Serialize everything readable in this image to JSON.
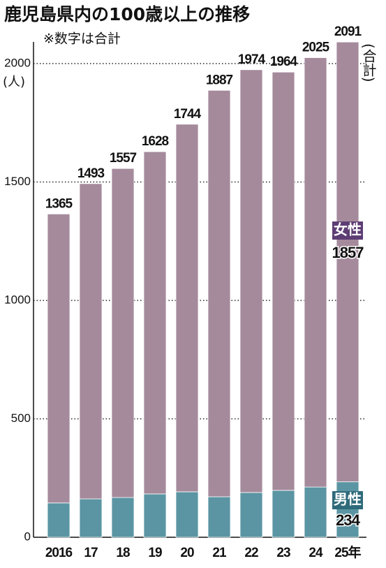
{
  "chart_data": {
    "type": "stacked_bar",
    "title": "鹿児島県内の100歳以上の推移",
    "subtitle": "※数字は合計",
    "y_unit": "(人)",
    "total_label": "(合計)",
    "categories": [
      "2016",
      "17",
      "18",
      "19",
      "20",
      "21",
      "22",
      "23",
      "24",
      "25年"
    ],
    "series": [
      {
        "name": "男性",
        "color": "#5b95a3",
        "values": [
          145,
          162,
          168,
          183,
          192,
          171,
          189,
          198,
          212,
          234
        ]
      },
      {
        "name": "女性",
        "color": "#a58a9c",
        "values": [
          1220,
          1331,
          1389,
          1445,
          1552,
          1716,
          1785,
          1766,
          1813,
          1857
        ]
      }
    ],
    "totals": [
      1365,
      1493,
      1557,
      1628,
      1744,
      1887,
      1974,
      1964,
      2025,
      2091
    ],
    "ylim": [
      0,
      2000
    ],
    "yticks": [
      0,
      500,
      1000,
      1500,
      2000
    ],
    "grid": true
  }
}
